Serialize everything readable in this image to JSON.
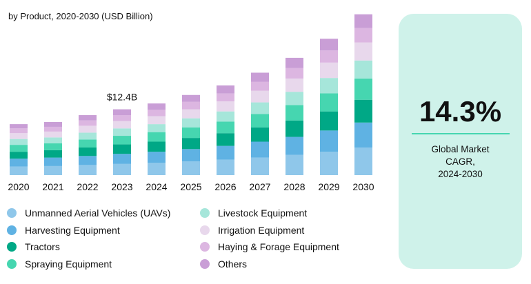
{
  "chart_data": {
    "type": "bar",
    "stacked": true,
    "subtitle": "by Product, 2020-2030 (USD Billion)",
    "categories": [
      "2020",
      "2021",
      "2022",
      "2023",
      "2024",
      "2025",
      "2026",
      "2027",
      "2028",
      "2029",
      "2030"
    ],
    "series": [
      {
        "name": "Unmanned Aerial Vehicles (UAVs)",
        "color": "#8fc7ea",
        "values": [
          1.6,
          1.7,
          1.9,
          2.1,
          2.3,
          2.6,
          2.9,
          3.3,
          3.8,
          4.4,
          5.2
        ]
      },
      {
        "name": "Harvesting Equipment",
        "color": "#5fb2e3",
        "values": [
          1.5,
          1.6,
          1.7,
          1.9,
          2.1,
          2.3,
          2.6,
          3.0,
          3.4,
          4.0,
          4.7
        ]
      },
      {
        "name": "Tractors",
        "color": "#00a886",
        "values": [
          1.3,
          1.4,
          1.6,
          1.8,
          1.9,
          2.1,
          2.4,
          2.7,
          3.1,
          3.6,
          4.3
        ]
      },
      {
        "name": "Spraying Equipment",
        "color": "#46d6b0",
        "values": [
          1.3,
          1.3,
          1.5,
          1.6,
          1.8,
          2.0,
          2.2,
          2.5,
          2.9,
          3.4,
          4.0
        ]
      },
      {
        "name": "Livestock Equipment",
        "color": "#a6e6da",
        "values": [
          1.1,
          1.1,
          1.3,
          1.4,
          1.5,
          1.7,
          1.9,
          2.2,
          2.5,
          2.9,
          3.4
        ]
      },
      {
        "name": "Irrigation Equipment",
        "color": "#e8d8ec",
        "values": [
          1.1,
          1.1,
          1.3,
          1.4,
          1.5,
          1.7,
          1.9,
          2.2,
          2.5,
          2.9,
          3.4
        ]
      },
      {
        "name": "Haying & Forage Equipment",
        "color": "#dcb6e1",
        "values": [
          0.9,
          0.9,
          1.0,
          1.1,
          1.2,
          1.4,
          1.5,
          1.7,
          2.0,
          2.3,
          2.7
        ]
      },
      {
        "name": "Others",
        "color": "#c99ed6",
        "values": [
          0.8,
          0.9,
          1.0,
          1.1,
          1.2,
          1.3,
          1.5,
          1.7,
          1.9,
          2.2,
          2.6
        ]
      }
    ],
    "annotations": [
      {
        "category": "2023",
        "text": "$12.4B"
      }
    ],
    "ylim": [
      0,
      30.4
    ],
    "grid": false,
    "legend_position": "bottom"
  },
  "card": {
    "value": "14.3%",
    "label_lines": [
      "Global Market",
      "CAGR,",
      "2024-2030"
    ],
    "bg": "#cff2ea",
    "accent": "#46d6b0"
  }
}
